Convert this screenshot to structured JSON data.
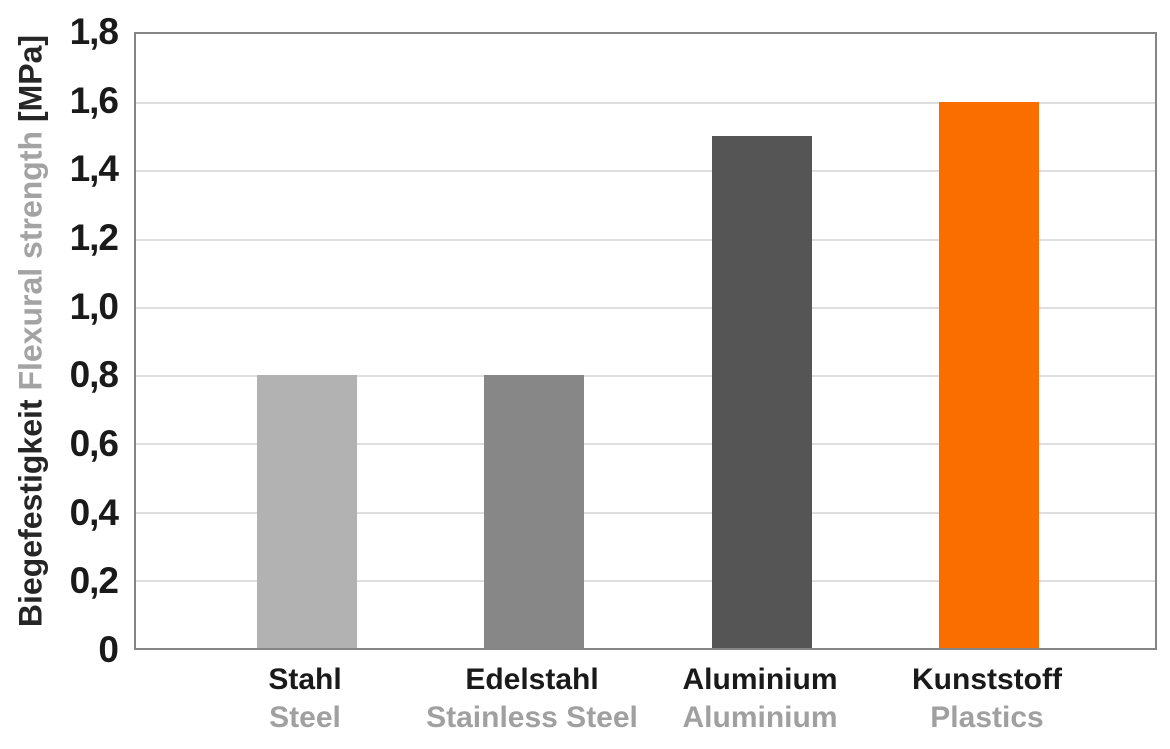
{
  "chart_data": {
    "type": "bar",
    "title": "",
    "ylabel_de": "Biegefestigkeit",
    "ylabel_en": "Flexural strength",
    "ylabel_unit": "[MPa]",
    "ylim": [
      0,
      1.8
    ],
    "ytick_step": 0.2,
    "grid": true,
    "legend_position": "none",
    "yticks": [
      {
        "value": 0.0,
        "label": "0"
      },
      {
        "value": 0.2,
        "label": "0,2"
      },
      {
        "value": 0.4,
        "label": "0,4"
      },
      {
        "value": 0.6,
        "label": "0,6"
      },
      {
        "value": 0.8,
        "label": "0,8"
      },
      {
        "value": 1.0,
        "label": "1,0"
      },
      {
        "value": 1.2,
        "label": "1,2"
      },
      {
        "value": 1.4,
        "label": "1,4"
      },
      {
        "value": 1.6,
        "label": "1,6"
      },
      {
        "value": 1.8,
        "label": "1,8"
      }
    ],
    "categories": [
      {
        "label_de": "Stahl",
        "label_en": "Steel",
        "value": 0.8,
        "color": "#b2b2b2"
      },
      {
        "label_de": "Edelstahl",
        "label_en": "Stainless Steel",
        "value": 0.8,
        "color": "#878787"
      },
      {
        "label_de": "Aluminium",
        "label_en": "Aluminium",
        "value": 1.5,
        "color": "#555555"
      },
      {
        "label_de": "Kunststoff",
        "label_en": "Plastics",
        "value": 1.6,
        "color": "#fa6e00"
      }
    ]
  },
  "colors": {
    "background": "#ffffff",
    "plot_border": "#858585",
    "gridline": "#dedede",
    "text_dark": "#1a1a1a",
    "text_gray": "#a0a0a0"
  }
}
